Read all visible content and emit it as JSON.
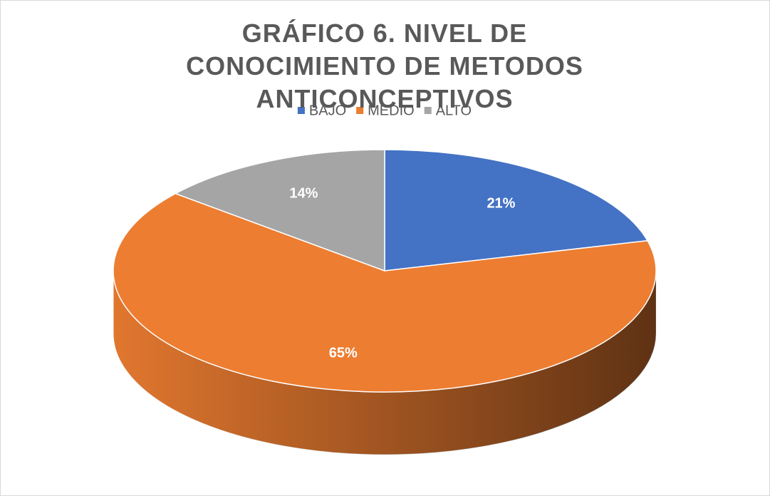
{
  "chart_data": {
    "type": "pie",
    "title": "GRÁFICO 6. NIVEL DE CONOCIMIENTO DE METODOS ANTICONCEPTIVOS",
    "legend": "top",
    "series": [
      {
        "name": "BAJO",
        "color": "#4472c4",
        "values": [
          21
        ],
        "value_labels": [
          "21%"
        ]
      },
      {
        "name": "MEDIO",
        "color": "#ed7d31",
        "values": [
          65
        ],
        "value_labels": [
          "65%"
        ]
      },
      {
        "name": "ALTO",
        "color": "#a5a5a5",
        "values": [
          14
        ],
        "value_labels": [
          "14%"
        ]
      }
    ]
  }
}
